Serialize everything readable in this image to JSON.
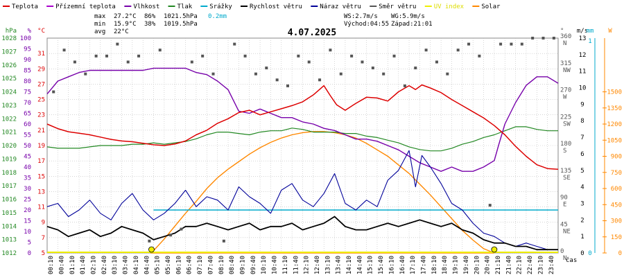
{
  "colors": {
    "temperature": "#dd0000",
    "feels_like": "#aa00cc",
    "humidity": "#7700aa",
    "pressure": "#228822",
    "precipitation": "#00aacc",
    "wind_speed": "#000000",
    "wind_gust": "#000099",
    "wind_dir": "#555555",
    "uv": "#eeee00",
    "solar": "#ff8800",
    "grid": "#bbbbbb"
  },
  "legend": [
    {
      "label": "Teplota",
      "color": "#dd0000"
    },
    {
      "label": "Přízemní teplota",
      "color": "#aa00cc"
    },
    {
      "label": "Vlhkost",
      "color": "#7700aa"
    },
    {
      "label": "Tlak",
      "color": "#228822"
    },
    {
      "label": "Srážky",
      "color": "#00aacc"
    },
    {
      "label": "Rychlost větru",
      "color": "#000000"
    },
    {
      "label": "Náraz větru",
      "color": "#000099"
    },
    {
      "label": "Směr větru",
      "color": "#555555"
    },
    {
      "label": "UV index",
      "color": "#eeee00"
    },
    {
      "label": "Solar",
      "color": "#ff8800"
    }
  ],
  "stats": {
    "max_label": "max",
    "max_temp": "27.2°C",
    "max_hum": "86%",
    "max_press": "1021.5hPa",
    "max_precip": "0.2mm",
    "min_label": "min",
    "min_temp": "15.9°C",
    "min_hum": "38%",
    "min_press": "1019.5hPa",
    "avg_label": "avg",
    "avg_temp": "22°C",
    "ws": "WS:2.7m/s",
    "wg": "WG:5.9m/s",
    "sunrise": "Východ:04:55",
    "sunset": "Západ:21:01"
  },
  "chart_data": {
    "type": "line",
    "title": "4.07.2025",
    "x_unit_label": "čas",
    "x_range": [
      "00:00",
      "24:00"
    ],
    "x_ticks": [
      "00:10",
      "00:40",
      "01:10",
      "01:40",
      "02:10",
      "02:40",
      "03:10",
      "03:40",
      "04:10",
      "04:40",
      "05:10",
      "05:40",
      "06:10",
      "06:40",
      "07:10",
      "07:40",
      "08:10",
      "08:40",
      "09:10",
      "09:40",
      "10:10",
      "10:40",
      "11:10",
      "11:40",
      "12:10",
      "12:40",
      "13:10",
      "13:40",
      "14:10",
      "14:40",
      "15:10",
      "15:40",
      "16:10",
      "16:40",
      "17:10",
      "17:40",
      "18:10",
      "18:40",
      "19:10",
      "19:40",
      "20:10",
      "20:40",
      "21:10",
      "21:40",
      "22:10",
      "22:40",
      "23:10",
      "23:40"
    ],
    "axes": {
      "pressure": {
        "label": "hPa",
        "range": [
          1012,
          1028
        ],
        "ticks": [
          1012,
          1013,
          1014,
          1015,
          1016,
          1017,
          1018,
          1019,
          1020,
          1021,
          1022,
          1023,
          1024,
          1025,
          1026,
          1027,
          1028
        ]
      },
      "humidity": {
        "label": "%",
        "range": [
          0,
          100
        ],
        "ticks": [
          0,
          5,
          10,
          15,
          20,
          25,
          30,
          35,
          40,
          45,
          50,
          55,
          60,
          65,
          70,
          75,
          80,
          85,
          90,
          95,
          100
        ]
      },
      "temperature": {
        "label": "°C",
        "range": [
          5,
          33
        ],
        "ticks": [
          5,
          7,
          9,
          11,
          13,
          15,
          17,
          19,
          21,
          23,
          25,
          27,
          29,
          31
        ]
      },
      "wind_dir": {
        "label": "°",
        "range": [
          0,
          360
        ],
        "ticks": [
          0,
          45,
          90,
          135,
          180,
          225,
          270,
          315,
          360
        ],
        "tick_names": [
          "N",
          "NE",
          "E",
          "SE",
          "S",
          "SW",
          "W",
          "NW",
          "N"
        ]
      },
      "wind_speed": {
        "label": "m/s",
        "range": [
          0,
          13
        ],
        "ticks": [
          0,
          1,
          2,
          3,
          4,
          5,
          6,
          7,
          8,
          9,
          10,
          11,
          12,
          13
        ]
      },
      "precipitation": {
        "label": "mm",
        "range": [
          0,
          1
        ],
        "ticks": [
          0,
          1
        ]
      },
      "solar": {
        "label": "W",
        "range": [
          0,
          2000
        ],
        "ticks": [
          0,
          150,
          300,
          450,
          600,
          750,
          900,
          1050,
          1200,
          1350,
          1500
        ]
      }
    },
    "series": [
      {
        "key": "temperature",
        "name": "Teplota",
        "axis": "temperature",
        "x": [
          0,
          0.5,
          1,
          1.5,
          2,
          2.5,
          3,
          3.5,
          4,
          4.5,
          5,
          5.5,
          6,
          6.5,
          7,
          7.5,
          8,
          8.5,
          9,
          9.5,
          10,
          10.5,
          11,
          11.5,
          12,
          12.5,
          13,
          13.3,
          13.6,
          14,
          14.5,
          15,
          15.5,
          16,
          16.5,
          17,
          17.3,
          17.6,
          18,
          18.5,
          19,
          19.5,
          20,
          20.5,
          21,
          21.5,
          22,
          22.5,
          23,
          23.5,
          24
        ],
        "values": [
          21.8,
          21.2,
          20.8,
          20.6,
          20.4,
          20.1,
          19.8,
          19.6,
          19.5,
          19.3,
          19.1,
          19.0,
          19.2,
          19.6,
          20.4,
          21.0,
          21.9,
          22.5,
          23.3,
          23.6,
          23.0,
          23.4,
          23.8,
          24.2,
          24.7,
          25.6,
          26.8,
          25.5,
          24.3,
          23.6,
          24.5,
          25.3,
          25.2,
          24.8,
          26.0,
          26.8,
          26.3,
          26.9,
          26.5,
          25.9,
          25.0,
          24.2,
          23.4,
          22.6,
          21.6,
          20.4,
          18.9,
          17.6,
          16.5,
          16.0,
          15.9
        ]
      },
      {
        "key": "humidity",
        "name": "Vlhkost",
        "axis": "humidity",
        "x": [
          0,
          0.5,
          1,
          1.5,
          2,
          2.5,
          3,
          3.5,
          4,
          4.5,
          5,
          5.5,
          6,
          6.5,
          7,
          7.5,
          8,
          8.5,
          9,
          9.5,
          10,
          10.5,
          11,
          11.5,
          12,
          12.5,
          13,
          13.5,
          14,
          14.5,
          15,
          15.5,
          16,
          16.5,
          17,
          17.5,
          18,
          18.5,
          19,
          19.5,
          20,
          20.5,
          21,
          21.2,
          21.5,
          22,
          22.5,
          23,
          23.5,
          24
        ],
        "values": [
          74,
          80,
          82,
          84,
          85,
          85,
          85,
          85,
          85,
          85,
          86,
          86,
          86,
          86,
          84,
          83,
          80,
          76,
          66,
          65,
          67,
          65,
          63,
          63,
          61,
          60,
          58,
          57,
          55,
          53,
          53,
          52,
          50,
          48,
          45,
          42,
          40,
          38,
          40,
          38,
          38,
          40,
          43,
          50,
          60,
          70,
          78,
          82,
          82,
          79
        ]
      },
      {
        "key": "pressure",
        "name": "Tlak",
        "axis": "pressure",
        "x": [
          0,
          0.5,
          1,
          1.5,
          2,
          2.5,
          3,
          3.5,
          4,
          4.5,
          5,
          5.5,
          6,
          6.5,
          7,
          7.5,
          8,
          8.5,
          9,
          9.5,
          10,
          10.5,
          11,
          11.5,
          12,
          12.5,
          13,
          13.5,
          14,
          14.5,
          15,
          15.5,
          16,
          16.5,
          17,
          17.5,
          18,
          18.5,
          19,
          19.5,
          20,
          20.5,
          21,
          21.5,
          22,
          22.5,
          23,
          23.5,
          24
        ],
        "values": [
          1019.9,
          1019.8,
          1019.8,
          1019.8,
          1019.9,
          1020.0,
          1020.0,
          1020.0,
          1020.1,
          1020.1,
          1020.2,
          1020.1,
          1020.2,
          1020.3,
          1020.5,
          1020.8,
          1021.0,
          1021.0,
          1020.9,
          1020.8,
          1021.0,
          1021.1,
          1021.1,
          1021.3,
          1021.2,
          1021.0,
          1021.0,
          1021.0,
          1020.9,
          1020.9,
          1020.7,
          1020.6,
          1020.4,
          1020.2,
          1019.9,
          1019.7,
          1019.6,
          1019.6,
          1019.8,
          1020.1,
          1020.3,
          1020.6,
          1020.8,
          1021.1,
          1021.4,
          1021.4,
          1021.2,
          1021.1,
          1021.1
        ]
      },
      {
        "key": "precipitation",
        "name": "Srážky",
        "axis": "precipitation",
        "x": [
          5,
          24
        ],
        "values": [
          0.2,
          0.2
        ]
      },
      {
        "key": "solar",
        "name": "Solar",
        "axis": "solar",
        "x": [
          4.9,
          5.5,
          6,
          6.5,
          7,
          7.5,
          8,
          8.5,
          9,
          9.5,
          10,
          10.5,
          11,
          11.5,
          12,
          12.5,
          13,
          13.5,
          14,
          14.5,
          15,
          15.5,
          16,
          16.5,
          17,
          17.5,
          18,
          18.5,
          19,
          19.5,
          20,
          20.5,
          21
        ],
        "values": [
          0,
          130,
          250,
          370,
          480,
          600,
          700,
          780,
          850,
          920,
          980,
          1030,
          1070,
          1100,
          1120,
          1130,
          1130,
          1120,
          1100,
          1070,
          1020,
          960,
          900,
          820,
          740,
          640,
          540,
          430,
          320,
          210,
          120,
          40,
          0
        ]
      },
      {
        "key": "wind_speed",
        "name": "Rychlost větru",
        "axis": "wind_speed",
        "x": [
          0,
          0.5,
          1,
          1.5,
          2,
          2.5,
          3,
          3.5,
          4,
          4.5,
          5,
          5.5,
          6,
          6.5,
          7,
          7.5,
          8,
          8.5,
          9,
          9.5,
          10,
          10.5,
          11,
          11.5,
          12,
          12.5,
          13,
          13.5,
          14,
          14.5,
          15,
          15.5,
          16,
          16.5,
          17,
          17.5,
          18,
          18.5,
          19,
          19.5,
          20,
          20.5,
          21,
          21.5,
          22,
          22.5,
          23,
          23.5,
          24
        ],
        "values": [
          1.6,
          1.4,
          1.0,
          1.2,
          1.4,
          1.0,
          1.2,
          1.6,
          1.4,
          1.2,
          0.8,
          1.0,
          1.2,
          1.6,
          1.6,
          1.8,
          1.6,
          1.4,
          1.6,
          1.8,
          1.4,
          1.6,
          1.6,
          1.8,
          1.4,
          1.6,
          1.8,
          2.2,
          1.6,
          1.4,
          1.4,
          1.6,
          1.8,
          1.6,
          1.8,
          2.0,
          1.8,
          1.6,
          1.8,
          1.4,
          1.2,
          0.8,
          0.6,
          0.6,
          0.4,
          0.4,
          0.2,
          0.2,
          0.2
        ]
      },
      {
        "key": "wind_gust",
        "name": "Náraz větru",
        "axis": "wind_speed",
        "x": [
          0,
          0.5,
          1,
          1.5,
          2,
          2.5,
          3,
          3.5,
          4,
          4.5,
          5,
          5.5,
          6,
          6.5,
          7,
          7.5,
          8,
          8.5,
          9,
          9.5,
          10,
          10.5,
          11,
          11.5,
          12,
          12.5,
          13,
          13.5,
          14,
          14.5,
          15,
          15.5,
          16,
          16.5,
          17,
          17.3,
          17.6,
          18,
          18.5,
          19,
          19.5,
          20,
          20.5,
          21,
          21.5,
          22,
          22.5,
          23,
          23.5,
          24
        ],
        "values": [
          2.8,
          3.0,
          2.2,
          2.6,
          3.2,
          2.4,
          2.0,
          3.0,
          3.6,
          2.6,
          2.0,
          2.4,
          3.0,
          3.8,
          2.8,
          3.4,
          3.2,
          2.6,
          4.0,
          3.4,
          3.0,
          2.4,
          3.8,
          4.2,
          3.2,
          2.8,
          3.6,
          4.8,
          3.0,
          2.6,
          3.2,
          2.8,
          4.4,
          5.0,
          6.2,
          4.0,
          5.9,
          5.2,
          4.2,
          3.0,
          2.6,
          1.8,
          1.2,
          1.0,
          0.6,
          0.4,
          0.6,
          0.4,
          0.2,
          0.2
        ]
      },
      {
        "key": "wind_dir",
        "name": "Směr větru",
        "axis": "wind_dir",
        "x": [
          0.3,
          0.8,
          1.3,
          1.8,
          2.3,
          2.8,
          3.3,
          3.8,
          4.3,
          4.8,
          5.3,
          5.8,
          6.3,
          6.8,
          7.3,
          7.8,
          8.3,
          8.8,
          9.3,
          9.8,
          10.3,
          10.8,
          11.3,
          11.8,
          12.3,
          12.8,
          13.3,
          13.8,
          14.3,
          14.8,
          15.3,
          15.8,
          16.3,
          16.8,
          17.3,
          17.8,
          18.3,
          18.8,
          19.3,
          19.8,
          20.3,
          20.8,
          21.3,
          21.8,
          22.3,
          22.8,
          23.3,
          23.8
        ],
        "values": [
          270,
          340,
          320,
          300,
          330,
          330,
          350,
          320,
          330,
          20,
          340,
          30,
          40,
          320,
          330,
          300,
          20,
          350,
          330,
          300,
          310,
          290,
          280,
          330,
          320,
          290,
          340,
          300,
          330,
          320,
          310,
          300,
          330,
          280,
          310,
          340,
          320,
          300,
          340,
          350,
          330,
          80,
          350,
          350,
          350,
          360,
          360,
          360
        ]
      }
    ],
    "uv_markers": [
      {
        "x": 4.9,
        "value": 0
      },
      {
        "x": 21.0,
        "value": 0
      }
    ],
    "grid": true,
    "legend_position": "top"
  }
}
